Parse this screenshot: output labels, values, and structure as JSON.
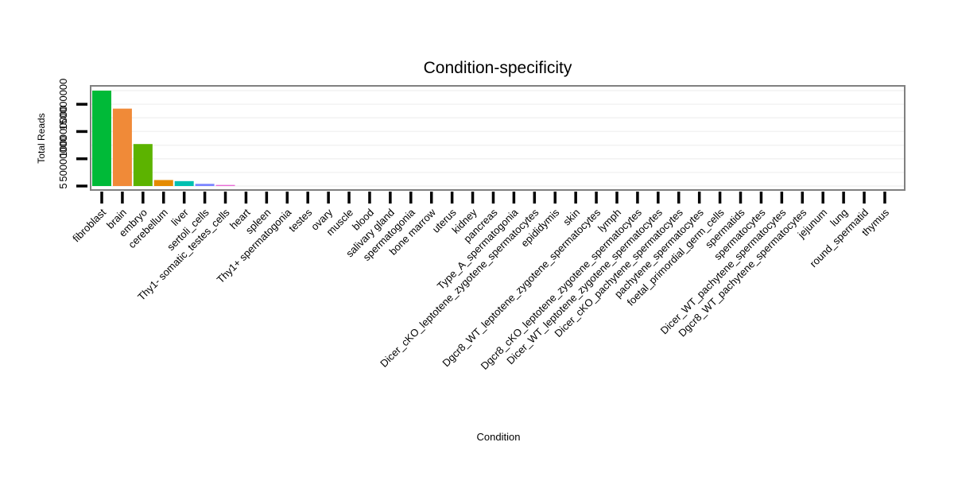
{
  "chart_data": {
    "type": "bar",
    "title": "Condition-specificity",
    "xlabel": "Condition",
    "ylabel": "Total Reads",
    "y_tick_labels": [
      "5",
      "50000000",
      "100000000",
      "150000000"
    ],
    "y_tick_values": [
      5,
      50000000,
      100000000,
      150000000
    ],
    "ylim": [
      0,
      180000000
    ],
    "categories": [
      "fibroblast",
      "brain",
      "embryo",
      "cerebellum",
      "liver",
      "sertoli_cells",
      "Thy1- somatic_testes_cells",
      "heart",
      "spleen",
      "Thy1+ spermatogonia",
      "testes",
      "ovary",
      "muscle",
      "blood",
      "salivary gland",
      "spermatogonia",
      "bone marrow",
      "uterus",
      "kidney",
      "pancreas",
      "Type_A_spermatogonia",
      "Dicer_cKO_leptotene_zygotene_spermatocytes",
      "epididymis",
      "skin",
      "Dgcr8_WT_leptotene_zygotene_spermatocytes",
      "lymph",
      "Dgcr8_cKO_leptotene_zygotene_spermatocytes",
      "Dicer_WT_leptotene_zygotene_spermatocytes",
      "Dicer_cKO_pachytene_spermatocytes",
      "pachytene_spermatocytes",
      "foetal_primordial_germ_cells",
      "spermatids",
      "spermatocytes",
      "Dicer_WT_pachytene_spermatocytes",
      "Dgcr8_WT_pachytene_spermatocytes",
      "jejunum",
      "lung",
      "round_spermatid",
      "thymus"
    ],
    "values": [
      175000000,
      142000000,
      77000000,
      11000000,
      9000000,
      4000000,
      2000000,
      0,
      0,
      0,
      0,
      0,
      0,
      0,
      0,
      0,
      0,
      0,
      0,
      0,
      0,
      0,
      0,
      0,
      0,
      0,
      0,
      0,
      0,
      0,
      0,
      0,
      0,
      0,
      0,
      0,
      0,
      0,
      0
    ],
    "colors": [
      "#00ba38",
      "#f08a38",
      "#5cb300",
      "#e58b00",
      "#00c0b0",
      "#7a84ff",
      "#e86bd6"
    ],
    "grid": true,
    "legend": "none"
  }
}
